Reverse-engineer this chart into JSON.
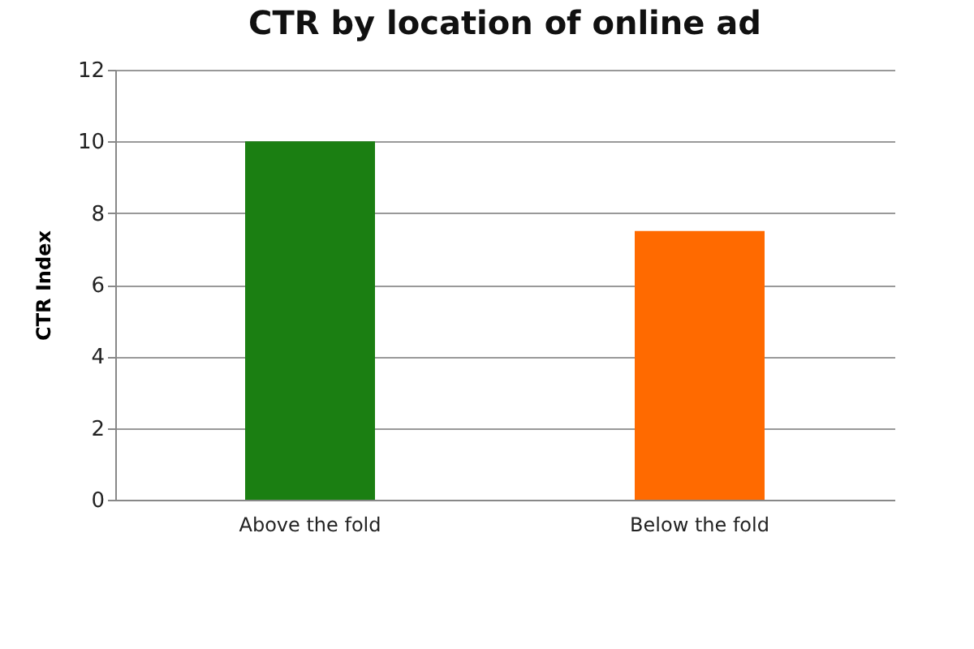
{
  "chart_data": {
    "type": "bar",
    "title": "CTR by location of online ad",
    "ylabel": "CTR Index",
    "categories": [
      "Above the fold",
      "Below the fold"
    ],
    "values": [
      10,
      7.5
    ],
    "colors": [
      "#1b7f12",
      "#ff6a00"
    ],
    "ylim": [
      0,
      12
    ],
    "yticks": [
      0,
      2,
      4,
      6,
      8,
      10,
      12
    ],
    "grid": "y"
  }
}
